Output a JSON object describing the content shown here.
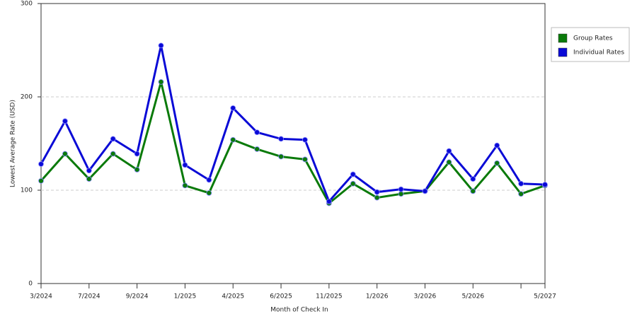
{
  "chart_data": {
    "type": "line",
    "x_label": "Month of Check In",
    "y_label": "Lowest Average Rate (USD)",
    "categories": [
      "3/2024",
      null,
      "7/2024",
      null,
      "9/2024",
      null,
      "1/2025",
      null,
      "4/2025",
      null,
      "6/2025",
      null,
      "11/2025",
      null,
      "1/2026",
      null,
      "3/2026",
      null,
      "5/2026",
      null,
      null,
      "5/2027"
    ],
    "series": [
      {
        "name": "Group Rates",
        "color": "#0a7a0a",
        "values": [
          110,
          139,
          112,
          139,
          122,
          216,
          105,
          97,
          154,
          144,
          136,
          133,
          86,
          107,
          92,
          96,
          99,
          130,
          99,
          129,
          96,
          105
        ]
      },
      {
        "name": "Individual Rates",
        "color": "#0a0ad6",
        "values": [
          128,
          174,
          121,
          155,
          139,
          255,
          127,
          111,
          188,
          162,
          155,
          154,
          88,
          117,
          98,
          101,
          99,
          142,
          112,
          148,
          107,
          106
        ]
      }
    ],
    "ylim": [
      0,
      300
    ],
    "yticks": [
      0,
      100,
      200,
      300
    ],
    "grid": true,
    "legend": "right"
  }
}
